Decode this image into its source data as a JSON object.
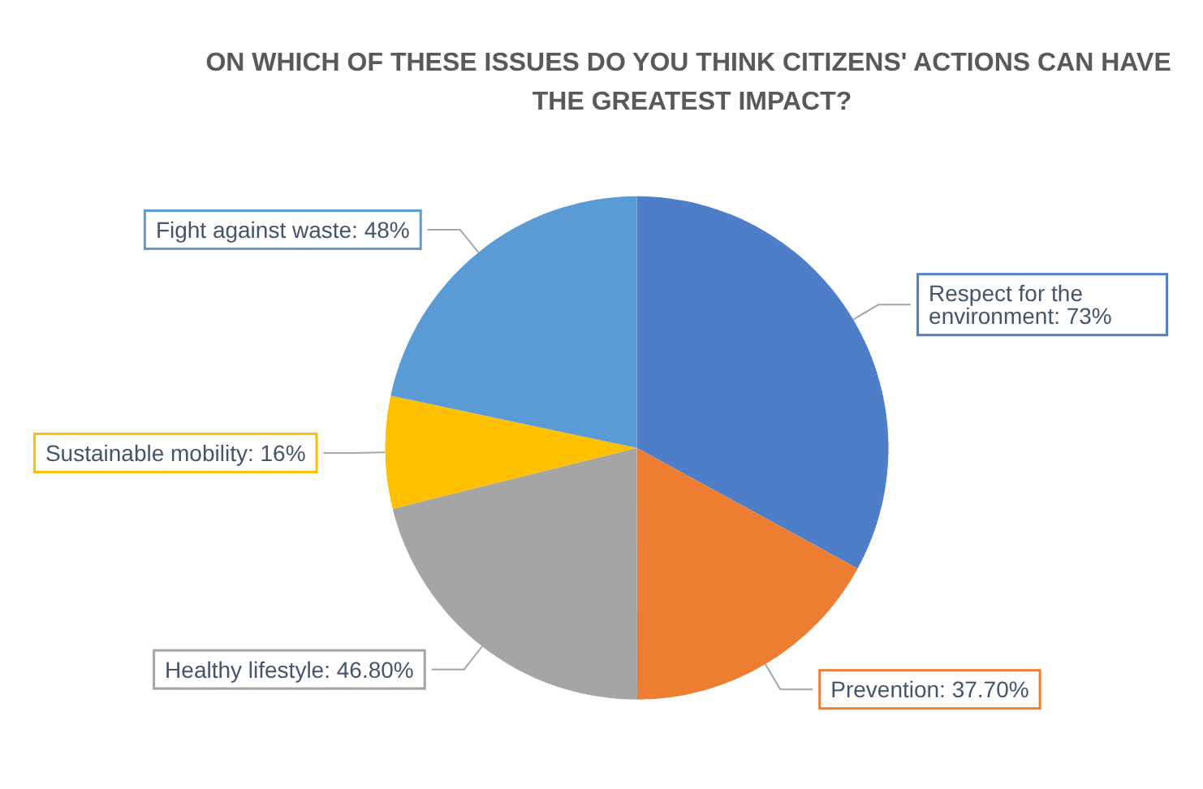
{
  "chart_data": {
    "type": "pie",
    "title": "ON WHICH OF THESE ISSUES DO YOU THINK CITIZENS' ACTIONS CAN HAVE THE GREATEST IMPACT?",
    "categories": [
      "Respect for the environment",
      "Prevention",
      "Healthy lifestyle",
      "Sustainable mobility",
      "Fight against waste"
    ],
    "values": [
      73,
      37.7,
      46.8,
      16,
      48
    ],
    "value_labels": [
      "73%",
      "37.70%",
      "46.80%",
      "16%",
      "48%"
    ],
    "colors": [
      "#4f7ec8",
      "#ed7d31",
      "#a5a5a5",
      "#ffc000",
      "#5b9bd5"
    ],
    "legend": false
  }
}
